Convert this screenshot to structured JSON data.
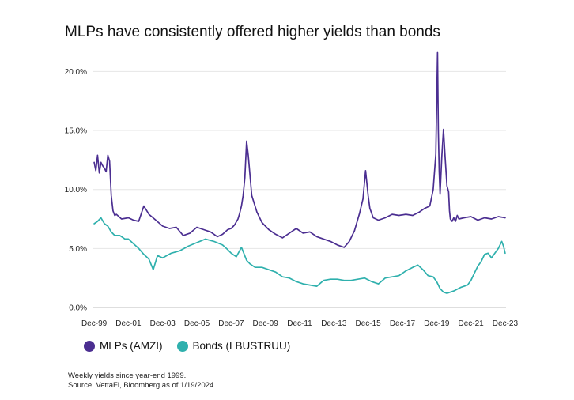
{
  "title": "MLPs have consistently offered higher yields than bonds",
  "footnotes": {
    "line1": "Weekly yields since year-end 1999.",
    "line2": "Source: VettaFi, Bloomberg as of 1/19/2024."
  },
  "colors": {
    "mlp": "#4b2e91",
    "bond": "#2fb0ad",
    "grid": "#e6e6e6",
    "axis": "#bdbdbd"
  },
  "chart_data": {
    "type": "line",
    "title": "MLPs have consistently offered higher yields than bonds",
    "xlabel": "",
    "ylabel": "",
    "xlim": [
      1999.95,
      2024.05
    ],
    "ylim": [
      0,
      21.5
    ],
    "y_ticks": [
      0,
      5,
      10,
      15,
      20
    ],
    "y_tick_labels": [
      "0.0%",
      "5.0%",
      "10.0%",
      "15.0%",
      "20.0%"
    ],
    "x_ticks": [
      2000,
      2002,
      2004,
      2006,
      2008,
      2010,
      2012,
      2014,
      2016,
      2018,
      2020,
      2022,
      2024
    ],
    "x_tick_labels": [
      "Dec-99",
      "Dec-01",
      "Dec-03",
      "Dec-05",
      "Dec-07",
      "Dec-09",
      "Dec-11",
      "Dec-13",
      "Dec-15",
      "Dec-17",
      "Dec-19",
      "Dec-21",
      "Dec-23"
    ],
    "grid": true,
    "legend": "bottom-left",
    "series": [
      {
        "name": "MLPs (AMZI)",
        "x": [
          2000.0,
          2000.1,
          2000.2,
          2000.3,
          2000.4,
          2000.5,
          2000.6,
          2000.7,
          2000.8,
          2000.9,
          2001.0,
          2001.1,
          2001.2,
          2001.3,
          2001.6,
          2002.0,
          2002.3,
          2002.6,
          2002.9,
          2003.2,
          2003.6,
          2004.0,
          2004.4,
          2004.8,
          2005.2,
          2005.6,
          2006.0,
          2006.4,
          2006.8,
          2007.2,
          2007.5,
          2007.8,
          2008.0,
          2008.2,
          2008.4,
          2008.5,
          2008.6,
          2008.7,
          2008.8,
          2008.9,
          2009.0,
          2009.2,
          2009.5,
          2009.8,
          2010.2,
          2010.6,
          2011.0,
          2011.4,
          2011.8,
          2012.2,
          2012.6,
          2013.0,
          2013.4,
          2013.8,
          2014.2,
          2014.6,
          2014.9,
          2015.2,
          2015.5,
          2015.7,
          2015.85,
          2016.0,
          2016.1,
          2016.3,
          2016.6,
          2017.0,
          2017.4,
          2017.8,
          2018.2,
          2018.6,
          2019.0,
          2019.3,
          2019.6,
          2019.8,
          2019.95,
          2020.05,
          2020.1,
          2020.15,
          2020.2,
          2020.3,
          2020.4,
          2020.5,
          2020.6,
          2020.7,
          2020.75,
          2020.8,
          2020.9,
          2021.0,
          2021.1,
          2021.2,
          2021.3,
          2021.6,
          2022.0,
          2022.4,
          2022.8,
          2023.2,
          2023.6,
          2024.0
        ],
        "values": [
          12.3,
          11.6,
          12.9,
          11.4,
          12.3,
          12.0,
          11.8,
          11.5,
          12.9,
          12.4,
          9.5,
          8.2,
          7.8,
          7.9,
          7.5,
          7.6,
          7.4,
          7.3,
          8.6,
          7.9,
          7.4,
          6.9,
          6.7,
          6.8,
          6.1,
          6.3,
          6.8,
          6.6,
          6.4,
          6.0,
          6.2,
          6.6,
          6.7,
          7.0,
          7.5,
          8.0,
          8.6,
          9.5,
          11.0,
          14.1,
          12.9,
          9.5,
          8.1,
          7.2,
          6.6,
          6.2,
          5.9,
          6.3,
          6.7,
          6.3,
          6.4,
          6.0,
          5.8,
          5.6,
          5.3,
          5.1,
          5.6,
          6.5,
          8.0,
          9.2,
          11.6,
          9.5,
          8.4,
          7.6,
          7.4,
          7.6,
          7.9,
          7.8,
          7.9,
          7.8,
          8.1,
          8.4,
          8.6,
          10.0,
          13.0,
          21.6,
          15.0,
          11.5,
          9.6,
          12.8,
          15.1,
          12.6,
          10.3,
          9.8,
          8.2,
          7.5,
          7.3,
          7.6,
          7.3,
          7.8,
          7.5,
          7.6,
          7.7,
          7.4,
          7.6,
          7.5,
          7.7,
          7.6
        ]
      },
      {
        "name": "Bonds (LBUSTRUU)",
        "x": [
          2000.0,
          2000.2,
          2000.4,
          2000.6,
          2000.8,
          2001.0,
          2001.2,
          2001.5,
          2001.8,
          2002.0,
          2002.3,
          2002.6,
          2002.9,
          2003.2,
          2003.45,
          2003.7,
          2004.0,
          2004.5,
          2005.0,
          2005.5,
          2006.0,
          2006.5,
          2007.0,
          2007.5,
          2007.8,
          2008.0,
          2008.3,
          2008.6,
          2008.9,
          2009.1,
          2009.4,
          2009.8,
          2010.2,
          2010.6,
          2011.0,
          2011.4,
          2011.8,
          2012.2,
          2012.6,
          2013.0,
          2013.4,
          2013.8,
          2014.2,
          2014.6,
          2015.0,
          2015.4,
          2015.8,
          2016.2,
          2016.6,
          2017.0,
          2017.4,
          2017.8,
          2018.2,
          2018.6,
          2018.9,
          2019.2,
          2019.5,
          2019.8,
          2020.0,
          2020.2,
          2020.4,
          2020.6,
          2020.8,
          2021.0,
          2021.4,
          2021.8,
          2022.0,
          2022.2,
          2022.4,
          2022.6,
          2022.8,
          2023.0,
          2023.2,
          2023.4,
          2023.6,
          2023.8,
          2023.9,
          2024.0
        ],
        "values": [
          7.1,
          7.3,
          7.6,
          7.1,
          6.9,
          6.4,
          6.1,
          6.1,
          5.8,
          5.8,
          5.4,
          5.0,
          4.5,
          4.1,
          3.2,
          4.4,
          4.2,
          4.6,
          4.8,
          5.2,
          5.5,
          5.8,
          5.6,
          5.3,
          4.9,
          4.6,
          4.3,
          5.1,
          4.0,
          3.7,
          3.4,
          3.4,
          3.2,
          3.0,
          2.6,
          2.5,
          2.2,
          2.0,
          1.9,
          1.8,
          2.3,
          2.4,
          2.4,
          2.3,
          2.3,
          2.4,
          2.5,
          2.2,
          2.0,
          2.5,
          2.6,
          2.7,
          3.1,
          3.4,
          3.6,
          3.2,
          2.7,
          2.6,
          2.2,
          1.6,
          1.3,
          1.2,
          1.3,
          1.4,
          1.7,
          1.9,
          2.3,
          2.9,
          3.5,
          3.9,
          4.5,
          4.6,
          4.2,
          4.6,
          5.0,
          5.6,
          5.2,
          4.6
        ]
      }
    ]
  }
}
